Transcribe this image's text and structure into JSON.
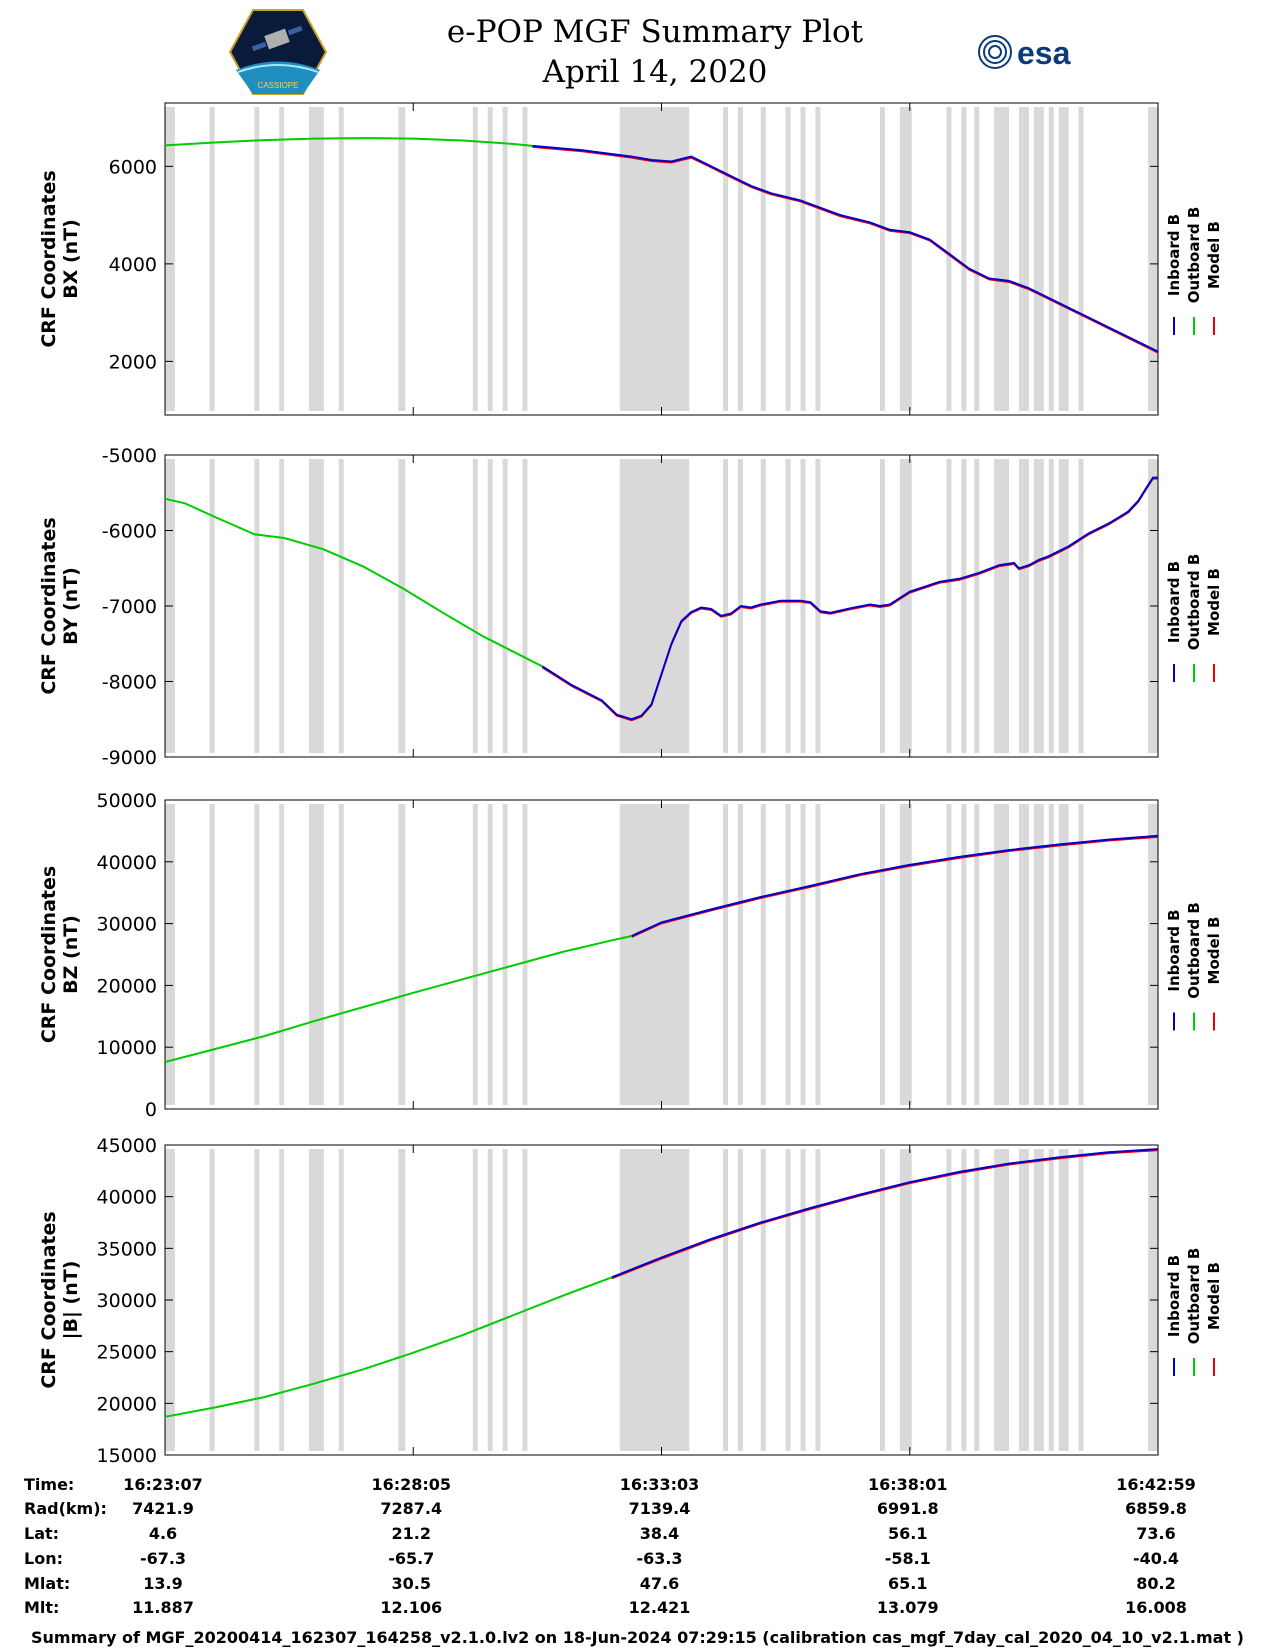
{
  "header": {
    "title": "e-POP MGF Summary Plot",
    "date": "April 14, 2020",
    "left_logo_label": "CASSIOPE",
    "right_logo_label": "esa"
  },
  "legend": {
    "inboard": "Inboard B",
    "outboard": "Outboard B",
    "model": "Model B"
  },
  "colors": {
    "inboard": "#0000cc",
    "outboard": "#00cc00",
    "model": "#ee0000",
    "gap": "#d9d9d9"
  },
  "chart_data": [
    {
      "type": "line",
      "ylabel": [
        "CRF Coordinates",
        "BX (nT)"
      ],
      "yticks": [
        2000,
        4000,
        6000
      ],
      "ylim": [
        900,
        7300
      ],
      "x_range": [
        0,
        1
      ],
      "green_end": 0.37,
      "series": {
        "outboard": [
          [
            0,
            6430
          ],
          [
            0.05,
            6490
          ],
          [
            0.1,
            6540
          ],
          [
            0.15,
            6570
          ],
          [
            0.2,
            6580
          ],
          [
            0.25,
            6570
          ],
          [
            0.3,
            6530
          ],
          [
            0.35,
            6460
          ],
          [
            0.37,
            6420
          ]
        ],
        "main": [
          [
            0.37,
            6420
          ],
          [
            0.42,
            6330
          ],
          [
            0.47,
            6200
          ],
          [
            0.49,
            6130
          ],
          [
            0.51,
            6100
          ],
          [
            0.53,
            6200
          ],
          [
            0.55,
            6000
          ],
          [
            0.57,
            5800
          ],
          [
            0.59,
            5600
          ],
          [
            0.61,
            5450
          ],
          [
            0.64,
            5300
          ],
          [
            0.66,
            5150
          ],
          [
            0.68,
            5000
          ],
          [
            0.71,
            4850
          ],
          [
            0.73,
            4700
          ],
          [
            0.75,
            4650
          ],
          [
            0.77,
            4500
          ],
          [
            0.79,
            4200
          ],
          [
            0.81,
            3900
          ],
          [
            0.83,
            3700
          ],
          [
            0.85,
            3650
          ],
          [
            0.87,
            3500
          ],
          [
            0.89,
            3300
          ],
          [
            0.91,
            3100
          ],
          [
            0.93,
            2900
          ],
          [
            0.95,
            2700
          ],
          [
            0.97,
            2500
          ],
          [
            0.99,
            2300
          ],
          [
            1.0,
            2200
          ]
        ]
      }
    },
    {
      "type": "line",
      "ylabel": [
        "CRF Coordinates",
        "BY (nT)"
      ],
      "yticks": [
        -9000,
        -8000,
        -7000,
        -6000,
        -5000
      ],
      "ylim": [
        -9000,
        -5000
      ],
      "x_range": [
        0,
        1
      ],
      "green_end": 0.38,
      "series": {
        "outboard": [
          [
            0,
            -5580
          ],
          [
            0.02,
            -5640
          ],
          [
            0.05,
            -5820
          ],
          [
            0.09,
            -6050
          ],
          [
            0.12,
            -6100
          ],
          [
            0.16,
            -6250
          ],
          [
            0.2,
            -6480
          ],
          [
            0.24,
            -6770
          ],
          [
            0.28,
            -7090
          ],
          [
            0.32,
            -7400
          ],
          [
            0.35,
            -7600
          ],
          [
            0.38,
            -7800
          ]
        ],
        "main": [
          [
            0.38,
            -7800
          ],
          [
            0.41,
            -8050
          ],
          [
            0.44,
            -8250
          ],
          [
            0.455,
            -8440
          ],
          [
            0.47,
            -8500
          ],
          [
            0.48,
            -8450
          ],
          [
            0.49,
            -8300
          ],
          [
            0.5,
            -7900
          ],
          [
            0.51,
            -7500
          ],
          [
            0.52,
            -7200
          ],
          [
            0.53,
            -7080
          ],
          [
            0.54,
            -7020
          ],
          [
            0.55,
            -7040
          ],
          [
            0.56,
            -7130
          ],
          [
            0.57,
            -7100
          ],
          [
            0.58,
            -7000
          ],
          [
            0.59,
            -7020
          ],
          [
            0.6,
            -6980
          ],
          [
            0.62,
            -6930
          ],
          [
            0.64,
            -6930
          ],
          [
            0.65,
            -6950
          ],
          [
            0.66,
            -7070
          ],
          [
            0.67,
            -7090
          ],
          [
            0.69,
            -7030
          ],
          [
            0.71,
            -6980
          ],
          [
            0.72,
            -7000
          ],
          [
            0.73,
            -6980
          ],
          [
            0.75,
            -6810
          ],
          [
            0.78,
            -6680
          ],
          [
            0.8,
            -6640
          ],
          [
            0.82,
            -6560
          ],
          [
            0.84,
            -6460
          ],
          [
            0.855,
            -6430
          ],
          [
            0.86,
            -6500
          ],
          [
            0.87,
            -6460
          ],
          [
            0.88,
            -6390
          ],
          [
            0.89,
            -6340
          ],
          [
            0.91,
            -6210
          ],
          [
            0.93,
            -6040
          ],
          [
            0.95,
            -5910
          ],
          [
            0.96,
            -5830
          ],
          [
            0.97,
            -5750
          ],
          [
            0.98,
            -5610
          ],
          [
            0.99,
            -5400
          ],
          [
            0.995,
            -5300
          ],
          [
            1.0,
            -5300
          ]
        ]
      }
    },
    {
      "type": "line",
      "ylabel": [
        "CRF Coordinates",
        "BZ (nT)"
      ],
      "yticks": [
        0,
        10000,
        20000,
        30000,
        40000,
        50000
      ],
      "ylim": [
        0,
        50000
      ],
      "x_range": [
        0,
        1
      ],
      "green_end": 0.47,
      "series": {
        "outboard": [
          [
            0,
            7600
          ],
          [
            0.05,
            9700
          ],
          [
            0.1,
            11800
          ],
          [
            0.15,
            14200
          ],
          [
            0.2,
            16500
          ],
          [
            0.25,
            18800
          ],
          [
            0.3,
            21000
          ],
          [
            0.35,
            23200
          ],
          [
            0.4,
            25400
          ],
          [
            0.45,
            27300
          ],
          [
            0.47,
            28000
          ]
        ],
        "main": [
          [
            0.47,
            28000
          ],
          [
            0.5,
            30200
          ],
          [
            0.55,
            32300
          ],
          [
            0.6,
            34300
          ],
          [
            0.65,
            36100
          ],
          [
            0.7,
            38000
          ],
          [
            0.75,
            39500
          ],
          [
            0.8,
            40800
          ],
          [
            0.85,
            41900
          ],
          [
            0.9,
            42800
          ],
          [
            0.95,
            43600
          ],
          [
            1.0,
            44200
          ]
        ]
      }
    },
    {
      "type": "line",
      "ylabel": [
        "CRF Coordinates",
        "|B| (nT)"
      ],
      "yticks": [
        15000,
        20000,
        25000,
        30000,
        35000,
        40000,
        45000
      ],
      "ylim": [
        15000,
        45000
      ],
      "x_range": [
        0,
        1
      ],
      "green_end": 0.45,
      "series": {
        "outboard": [
          [
            0,
            18700
          ],
          [
            0.05,
            19600
          ],
          [
            0.1,
            20600
          ],
          [
            0.15,
            21900
          ],
          [
            0.2,
            23300
          ],
          [
            0.25,
            24900
          ],
          [
            0.3,
            26600
          ],
          [
            0.35,
            28500
          ],
          [
            0.4,
            30400
          ],
          [
            0.45,
            32200
          ]
        ],
        "main": [
          [
            0.45,
            32200
          ],
          [
            0.5,
            34100
          ],
          [
            0.55,
            35900
          ],
          [
            0.6,
            37500
          ],
          [
            0.65,
            38900
          ],
          [
            0.7,
            40200
          ],
          [
            0.75,
            41400
          ],
          [
            0.8,
            42400
          ],
          [
            0.85,
            43200
          ],
          [
            0.9,
            43800
          ],
          [
            0.95,
            44300
          ],
          [
            1.0,
            44600
          ]
        ]
      }
    }
  ],
  "gaps": [
    [
      0,
      0.01
    ],
    [
      0.045,
      0.05
    ],
    [
      0.09,
      0.095
    ],
    [
      0.115,
      0.12
    ],
    [
      0.145,
      0.16
    ],
    [
      0.175,
      0.18
    ],
    [
      0.235,
      0.242
    ],
    [
      0.31,
      0.315
    ],
    [
      0.325,
      0.33
    ],
    [
      0.34,
      0.345
    ],
    [
      0.36,
      0.365
    ],
    [
      0.458,
      0.528
    ],
    [
      0.562,
      0.567
    ],
    [
      0.577,
      0.582
    ],
    [
      0.6,
      0.605
    ],
    [
      0.625,
      0.63
    ],
    [
      0.64,
      0.645
    ],
    [
      0.655,
      0.66
    ],
    [
      0.72,
      0.725
    ],
    [
      0.74,
      0.752
    ],
    [
      0.787,
      0.792
    ],
    [
      0.802,
      0.807
    ],
    [
      0.815,
      0.82
    ],
    [
      0.835,
      0.85
    ],
    [
      0.86,
      0.87
    ],
    [
      0.875,
      0.885
    ],
    [
      0.89,
      0.895
    ],
    [
      0.9,
      0.91
    ],
    [
      0.92,
      0.925
    ],
    [
      0.99,
      1.0
    ]
  ],
  "xticks_frac": [
    0,
    0.25,
    0.5,
    0.75,
    1
  ],
  "info_table": {
    "row_labels": [
      "Time:",
      "Rad(km):",
      "Lat:",
      "Lon:",
      "Mlat:",
      "Mlt:"
    ],
    "columns": [
      [
        "16:23:07",
        "7421.9",
        "4.6",
        "-67.3",
        "13.9",
        "11.887"
      ],
      [
        "16:28:05",
        "7287.4",
        "21.2",
        "-65.7",
        "30.5",
        "12.106"
      ],
      [
        "16:33:03",
        "7139.4",
        "38.4",
        "-63.3",
        "47.6",
        "12.421"
      ],
      [
        "16:38:01",
        "6991.8",
        "56.1",
        "-58.1",
        "65.1",
        "13.079"
      ],
      [
        "16:42:59",
        "6859.8",
        "73.6",
        "-40.4",
        "80.2",
        "16.008"
      ]
    ]
  },
  "footer": "Summary of MGF_20200414_162307_164258_v2.1.0.lv2 on 18-Jun-2024 07:29:15 (calibration cas_mgf_7day_cal_2020_04_10_v2.1.mat )"
}
